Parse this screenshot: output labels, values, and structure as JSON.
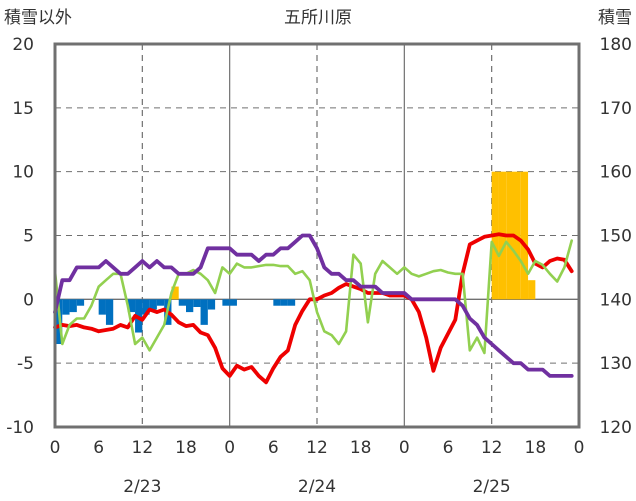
{
  "chart_data": {
    "type": "line",
    "title": "五所川原",
    "y_left_label": "積雪以外",
    "y_right_label": "積雪",
    "y_left_range": [
      -10,
      20
    ],
    "y_left_ticks": [
      "20",
      "15",
      "10",
      "5",
      "0",
      "-5",
      "-10"
    ],
    "y_right_range": [
      120,
      180
    ],
    "y_right_ticks": [
      "180",
      "170",
      "160",
      "150",
      "140",
      "130",
      "120"
    ],
    "x_range_hours": [
      0,
      72
    ],
    "x_tick_labels": [
      "0",
      "6",
      "12",
      "18",
      "0",
      "6",
      "12",
      "18",
      "0",
      "6",
      "12",
      "18",
      "0"
    ],
    "date_labels": [
      "2/23",
      "2/24",
      "2/25"
    ],
    "grid": true,
    "colors": {
      "red": "#ee0000",
      "green": "#92d050",
      "purple": "#7030a0",
      "blue_bars": "#0070c0",
      "orange_bars": "#ffc000"
    },
    "series": [
      {
        "color": "red",
        "axis": "left",
        "x": [
          0,
          1,
          2,
          3,
          4,
          5,
          6,
          7,
          8,
          9,
          10,
          11,
          12,
          13,
          14,
          15,
          16,
          17,
          18,
          19,
          20,
          21,
          22,
          23,
          24,
          25,
          26,
          27,
          28,
          29,
          30,
          31,
          32,
          33,
          34,
          35,
          36,
          37,
          38,
          39,
          40,
          41,
          42,
          43,
          44,
          45,
          46,
          47,
          48,
          49,
          50,
          51,
          52,
          53,
          54,
          55,
          56,
          57,
          58,
          59,
          60,
          61,
          62,
          63,
          64,
          65,
          66,
          67,
          68,
          69,
          70,
          71
        ],
        "y": [
          -2.2,
          -2.0,
          -2.1,
          -2.0,
          -2.2,
          -2.3,
          -2.5,
          -2.4,
          -2.3,
          -2.0,
          -2.2,
          -1.3,
          -1.6,
          -0.8,
          -1.0,
          -0.8,
          -1.2,
          -1.8,
          -2.1,
          -2.0,
          -2.6,
          -2.8,
          -3.8,
          -5.4,
          -6.0,
          -5.2,
          -5.5,
          -5.3,
          -6.0,
          -6.5,
          -5.4,
          -4.5,
          -4.0,
          -2.0,
          -0.9,
          0.0,
          0.0,
          0.3,
          0.5,
          0.9,
          1.2,
          1.0,
          0.8,
          0.5,
          0.5,
          0.5,
          0.3,
          0.3,
          0.3,
          0.0,
          -1.0,
          -3.0,
          -5.6,
          -3.8,
          -2.7,
          -1.6,
          2.0,
          4.3,
          4.6,
          4.9,
          5.0,
          5.1,
          5.0,
          5.0,
          4.6,
          3.9,
          2.8,
          2.5,
          3.0,
          3.2,
          3.1,
          2.2
        ]
      },
      {
        "color": "green",
        "axis": "left",
        "x": [
          0,
          1,
          2,
          3,
          4,
          5,
          6,
          7,
          8,
          9,
          10,
          11,
          12,
          13,
          14,
          15,
          16,
          17,
          18,
          19,
          20,
          21,
          22,
          23,
          24,
          25,
          26,
          27,
          28,
          29,
          30,
          31,
          32,
          33,
          34,
          35,
          36,
          37,
          38,
          39,
          40,
          41,
          42,
          43,
          44,
          45,
          46,
          47,
          48,
          49,
          50,
          51,
          52,
          53,
          54,
          55,
          56,
          57,
          58,
          59,
          60,
          61,
          62,
          63,
          64,
          65,
          66,
          67,
          68,
          69,
          70,
          71
        ],
        "y": [
          2.2,
          -3.5,
          -2.0,
          -1.5,
          -1.5,
          -0.5,
          1.0,
          1.5,
          2.0,
          2.0,
          -0.5,
          -3.5,
          -3.0,
          -4.0,
          -3.0,
          -2.0,
          0.5,
          2.0,
          2.0,
          2.3,
          2.0,
          1.5,
          0.5,
          2.5,
          2.0,
          2.8,
          2.5,
          2.5,
          2.6,
          2.7,
          2.7,
          2.6,
          2.6,
          2.0,
          2.2,
          1.5,
          -1.0,
          -2.5,
          -2.8,
          -3.5,
          -2.5,
          3.5,
          2.8,
          -1.8,
          2.0,
          3.0,
          2.5,
          2.0,
          2.5,
          2.0,
          1.8,
          2.0,
          2.2,
          2.3,
          2.1,
          2.0,
          2.0,
          -4.0,
          -3.0,
          -4.2,
          4.5,
          3.4,
          4.5,
          3.8,
          3.0,
          2.0,
          3.0,
          2.7,
          2.0,
          1.4,
          2.5,
          4.6
        ]
      },
      {
        "color": "purple",
        "axis": "right",
        "x": [
          0,
          1,
          2,
          3,
          4,
          5,
          6,
          7,
          8,
          9,
          10,
          11,
          12,
          13,
          14,
          15,
          16,
          17,
          18,
          19,
          20,
          21,
          22,
          23,
          24,
          25,
          26,
          27,
          28,
          29,
          30,
          31,
          32,
          33,
          34,
          35,
          36,
          37,
          38,
          39,
          40,
          41,
          42,
          43,
          44,
          45,
          46,
          47,
          48,
          49,
          50,
          51,
          52,
          53,
          54,
          55,
          56,
          57,
          58,
          59,
          60,
          61,
          62,
          63,
          64,
          65,
          66,
          67,
          68,
          69,
          70,
          71
        ],
        "y": [
          138,
          143,
          143,
          145,
          145,
          145,
          145,
          146,
          145,
          144,
          144,
          145,
          146,
          145,
          146,
          145,
          145,
          144,
          144,
          144,
          145,
          148,
          148,
          148,
          148,
          147,
          147,
          147,
          146,
          147,
          147,
          148,
          148,
          149,
          150,
          150,
          148,
          145,
          144,
          144,
          143,
          143,
          142,
          142,
          142,
          141,
          141,
          141,
          141,
          140,
          140,
          140,
          140,
          140,
          140,
          140,
          139,
          137,
          136,
          134,
          133,
          132,
          131,
          130,
          130,
          129,
          129,
          129,
          128,
          128,
          128,
          128
        ]
      }
    ],
    "bars": [
      {
        "color": "blue_bars",
        "axis": "left",
        "x": [
          0.5,
          1.5,
          2.5,
          3.5,
          6.5,
          7.5,
          10.5,
          11.5,
          12.5,
          13.5,
          14.5,
          15.5,
          17.5,
          18.5,
          19.5,
          20.5,
          21.5,
          23.5,
          24.5,
          30.5,
          31.5,
          32.5
        ],
        "y": [
          -3.5,
          -1.2,
          -1.0,
          -0.5,
          -1.2,
          -2.0,
          -1.0,
          -2.6,
          -1.2,
          -0.8,
          -0.5,
          -2.0,
          -0.5,
          -1.0,
          -0.6,
          -2.0,
          -0.8,
          -0.5,
          -0.5,
          -0.5,
          -0.5,
          -0.5
        ]
      },
      {
        "color": "orange_bars",
        "axis": "left",
        "x": [
          16.5,
          60.5,
          61.5,
          62.5,
          63.5,
          64.5,
          65.5
        ],
        "y": [
          1.0,
          10.0,
          10.0,
          10.0,
          10.0,
          10.0,
          1.5
        ]
      }
    ]
  }
}
